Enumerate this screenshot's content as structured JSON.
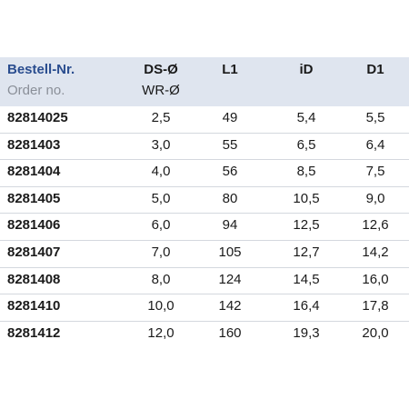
{
  "table": {
    "header": [
      {
        "title": "Bestell-Nr.",
        "subtitle": "Order no."
      },
      {
        "title": "DS-Ø",
        "subtitle": "WR-Ø"
      },
      {
        "title": "L1"
      },
      {
        "title": "iD"
      },
      {
        "title": "D1"
      }
    ],
    "rows": [
      [
        "82814025",
        "2,5",
        "49",
        "5,4",
        "5,5"
      ],
      [
        "8281403",
        "3,0",
        "55",
        "6,5",
        "6,4"
      ],
      [
        "8281404",
        "4,0",
        "56",
        "8,5",
        "7,5"
      ],
      [
        "8281405",
        "5,0",
        "80",
        "10,5",
        "9,0"
      ],
      [
        "8281406",
        "6,0",
        "94",
        "12,5",
        "12,6"
      ],
      [
        "8281407",
        "7,0",
        "105",
        "12,7",
        "14,2"
      ],
      [
        "8281408",
        "8,0",
        "124",
        "14,5",
        "16,0"
      ],
      [
        "8281410",
        "10,0",
        "142",
        "16,4",
        "17,8"
      ],
      [
        "8281412",
        "12,0",
        "160",
        "19,3",
        "20,0"
      ]
    ]
  }
}
